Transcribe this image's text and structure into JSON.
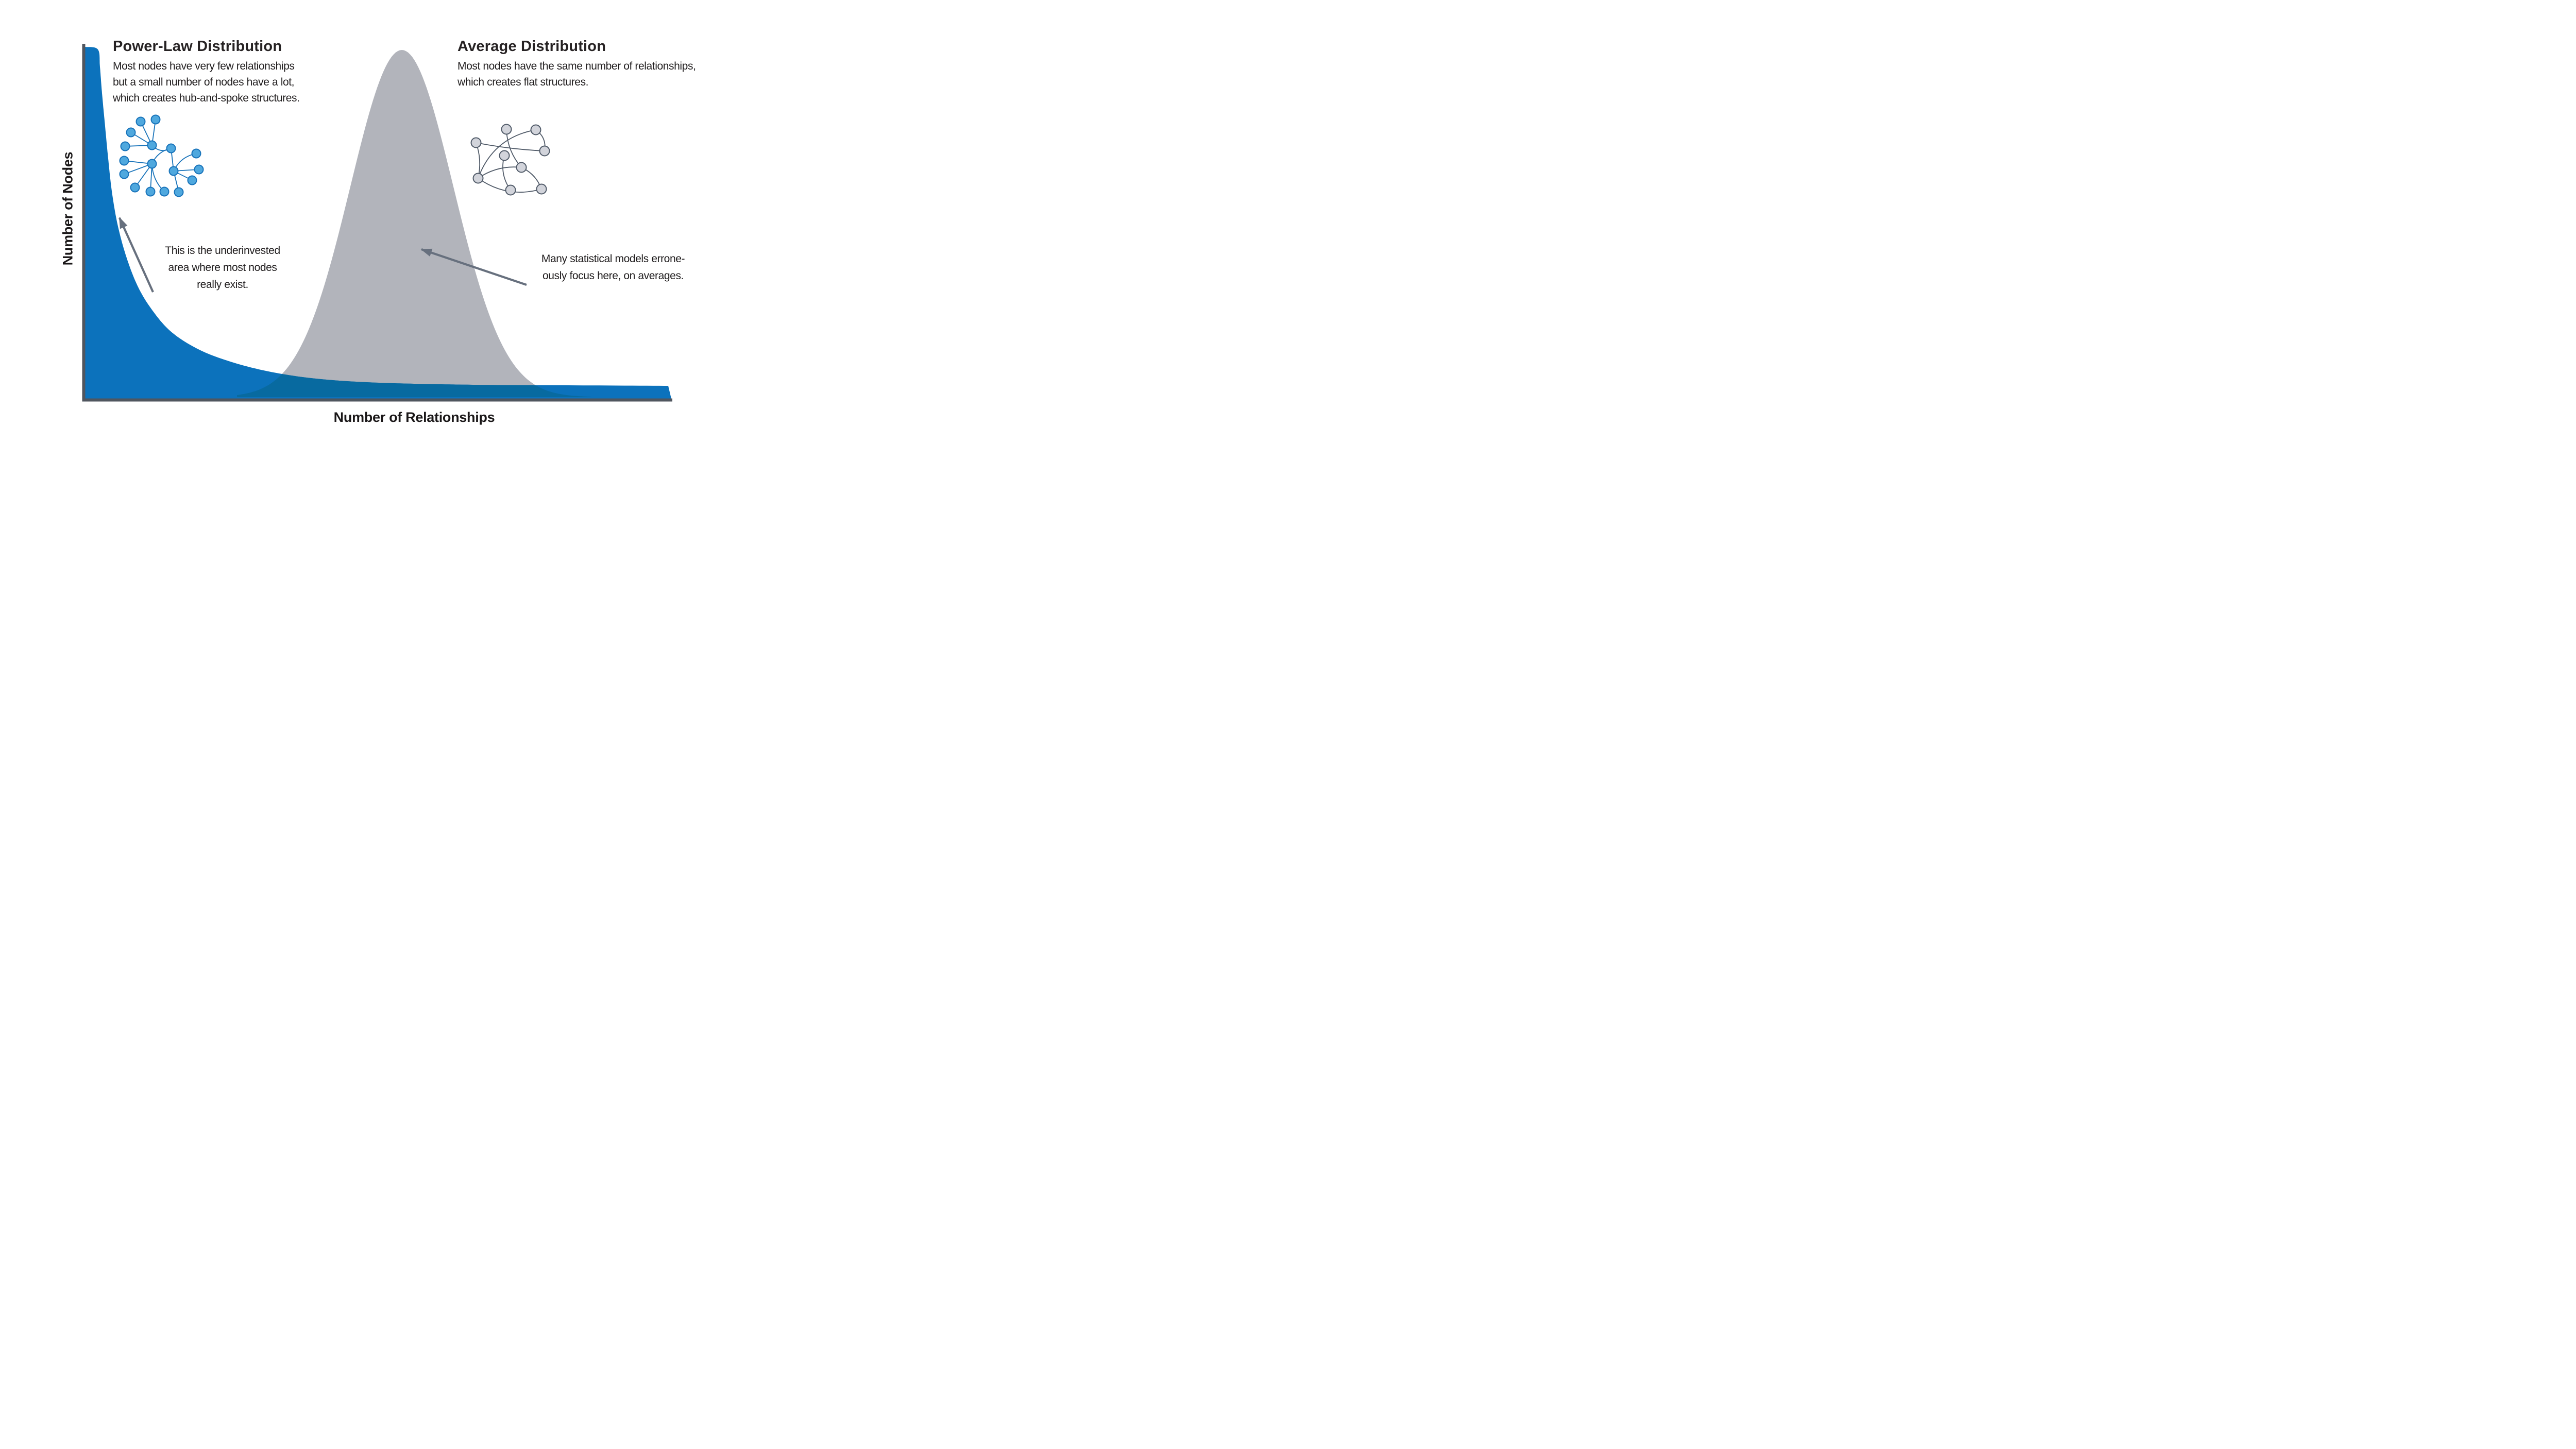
{
  "figure": {
    "background": "#ffffff",
    "power_law": {
      "title": "Power-Law Distribution",
      "body_lines": [
        "Most nodes have very few relationships",
        "but a small number of nodes have a lot,",
        "which creates hub-and-spoke structures."
      ],
      "fill_color": "#0C72BC"
    },
    "average": {
      "title": "Average Distribution",
      "body_lines": [
        "Most nodes have the same number of relationships,",
        "which creates flat structures."
      ],
      "fill_color": "#B2B4BB"
    },
    "annotations": {
      "left_lines": [
        "This is the underinvested",
        "area where most nodes",
        "really exist."
      ],
      "right_lines": [
        "Many statistical models errone-",
        "ously focus here, on averages."
      ]
    },
    "axes": {
      "x_label": "Number of Relationships",
      "y_label": "Number of Nodes",
      "color": "#50565F"
    },
    "overlap_color": "#086AA0",
    "arrow_color": "#67707E",
    "icons": {
      "hub_network": {
        "name": "hub-and-spoke-network-icon",
        "node_fill": "#4FA8DE",
        "node_stroke": "#1873BA",
        "edge_color": "#1873BA"
      },
      "flat_network": {
        "name": "flat-network-icon",
        "node_fill": "#D2D4DB",
        "node_stroke": "#505A68",
        "edge_color": "#505A68"
      }
    }
  },
  "chart_data": {
    "type": "area",
    "title": "",
    "xlabel": "Number of Relationships",
    "ylabel": "Number of Nodes",
    "x_axis_numeric": false,
    "y_axis_numeric": false,
    "grid": false,
    "legend": "none",
    "series": [
      {
        "name": "Power-Law Distribution",
        "type": "area",
        "color": "#0C72BC",
        "shape": "power-law decay",
        "x_frac": [
          0,
          0.022,
          0.029,
          0.034,
          0.04,
          0.046,
          0.056,
          0.07,
          0.09,
          0.114,
          0.146,
          0.192,
          0.246,
          0.314,
          0.395,
          0.502,
          0.664,
          0.826,
          1.0
        ],
        "y_frac": [
          1.0,
          0.993,
          0.868,
          0.775,
          0.682,
          0.59,
          0.496,
          0.404,
          0.321,
          0.255,
          0.192,
          0.142,
          0.107,
          0.078,
          0.057,
          0.045,
          0.04,
          0.038,
          0.037
        ]
      },
      {
        "name": "Average Distribution",
        "type": "area",
        "color": "#B2B4BB",
        "shape": "normal (bell) curve",
        "distribution": "normal",
        "center_x_frac": 0.54,
        "sigma_x_frac": 0.0875,
        "peak_y_frac": 0.985
      }
    ],
    "overlap_color": "#086AA0",
    "annotations": [
      {
        "text": "This is the underinvested area where most nodes really exist.",
        "points_to": "steep region of the power-law curve"
      },
      {
        "text": "Many statistical models erroneously focus here, on averages.",
        "points_to": "center of the average (bell) distribution"
      }
    ]
  }
}
